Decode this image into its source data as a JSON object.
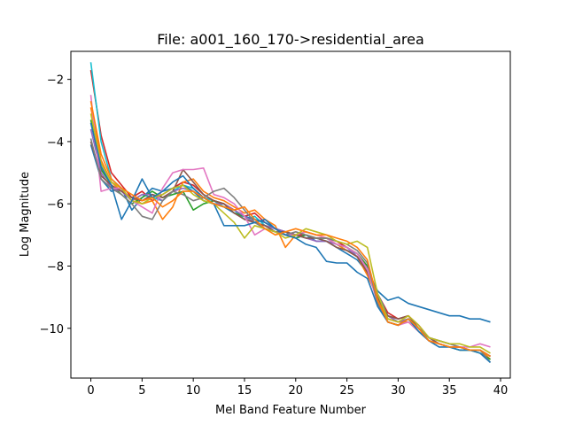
{
  "chart_data": {
    "type": "line",
    "title": "File: a001_160_170->residential_area",
    "xlabel": "Mel Band Feature Number",
    "ylabel": "Log Magnitude",
    "xlim": [
      -1.95,
      40.95
    ],
    "ylim": [
      -11.6,
      -1.1
    ],
    "xticks": [
      0,
      5,
      10,
      15,
      20,
      25,
      30,
      35,
      40
    ],
    "xtick_labels": [
      "0",
      "5",
      "10",
      "15",
      "20",
      "25",
      "30",
      "35",
      "40"
    ],
    "yticks": [
      -10,
      -8,
      -6,
      -4,
      -2
    ],
    "ytick_labels": [
      "−10",
      "−8",
      "−6",
      "−4",
      "−2"
    ],
    "grid": false,
    "legend": "none",
    "x": [
      0,
      1,
      2,
      3,
      4,
      5,
      6,
      7,
      8,
      9,
      10,
      11,
      12,
      13,
      14,
      15,
      16,
      17,
      18,
      19,
      20,
      21,
      22,
      23,
      24,
      25,
      26,
      27,
      28,
      29,
      30,
      31,
      32,
      33,
      34,
      35,
      36,
      37,
      38,
      39
    ],
    "series": [
      {
        "color": "#d62728",
        "values": [
          -1.7,
          -3.8,
          -5.0,
          -5.4,
          -5.8,
          -5.6,
          -5.9,
          -5.7,
          -5.5,
          -5.3,
          -5.4,
          -5.7,
          -5.9,
          -6.0,
          -6.2,
          -6.4,
          -6.3,
          -6.6,
          -6.8,
          -6.9,
          -7.0,
          -7.0,
          -7.1,
          -7.1,
          -7.2,
          -7.4,
          -7.6,
          -8.0,
          -8.9,
          -9.5,
          -9.7,
          -9.6,
          -9.9,
          -10.3,
          -10.5,
          -10.6,
          -10.6,
          -10.7,
          -10.7,
          -10.9
        ]
      },
      {
        "color": "#17becf",
        "values": [
          -1.45,
          -4.0,
          -5.2,
          -5.5,
          -5.9,
          -5.7,
          -5.8,
          -5.9,
          -5.6,
          -5.4,
          -5.5,
          -5.8,
          -5.9,
          -6.1,
          -6.2,
          -6.5,
          -6.4,
          -6.7,
          -6.9,
          -6.9,
          -7.0,
          -7.1,
          -7.1,
          -7.2,
          -7.3,
          -7.5,
          -7.6,
          -8.1,
          -8.9,
          -9.6,
          -9.8,
          -9.7,
          -10.0,
          -10.3,
          -10.5,
          -10.6,
          -10.6,
          -10.7,
          -10.7,
          -11.0
        ]
      },
      {
        "color": "#1f77b4",
        "values": [
          -4.1,
          -5.2,
          -5.6,
          -5.5,
          -6.2,
          -5.8,
          -5.5,
          -5.6,
          -5.5,
          -5.4,
          -5.6,
          -5.9,
          -6.0,
          -6.1,
          -6.3,
          -6.4,
          -6.5,
          -6.6,
          -6.8,
          -6.9,
          -7.1,
          -7.0,
          -7.2,
          -7.2,
          -7.4,
          -7.6,
          -7.8,
          -8.2,
          -8.8,
          -9.1,
          -9.0,
          -9.2,
          -9.3,
          -9.4,
          -9.5,
          -9.6,
          -9.6,
          -9.7,
          -9.7,
          -9.8
        ]
      },
      {
        "color": "#ff7f0e",
        "values": [
          -2.9,
          -4.6,
          -5.3,
          -5.6,
          -5.8,
          -6.0,
          -5.9,
          -6.5,
          -6.1,
          -5.3,
          -5.2,
          -5.6,
          -5.8,
          -5.9,
          -6.1,
          -6.3,
          -6.2,
          -6.5,
          -6.7,
          -7.4,
          -7.0,
          -6.9,
          -7.0,
          -7.1,
          -7.3,
          -7.5,
          -7.7,
          -8.3,
          -9.0,
          -9.7,
          -9.8,
          -9.8,
          -10.1,
          -10.4,
          -10.5,
          -10.6,
          -10.6,
          -10.7,
          -10.7,
          -11.0
        ]
      },
      {
        "color": "#2ca02c",
        "values": [
          -3.3,
          -4.9,
          -5.4,
          -5.7,
          -6.0,
          -5.8,
          -5.6,
          -5.8,
          -5.7,
          -5.6,
          -6.2,
          -6.0,
          -5.9,
          -6.0,
          -6.3,
          -6.4,
          -6.6,
          -6.7,
          -6.8,
          -7.0,
          -7.1,
          -7.0,
          -7.1,
          -7.1,
          -7.3,
          -7.4,
          -7.6,
          -8.0,
          -9.1,
          -9.8,
          -9.9,
          -9.7,
          -10.0,
          -10.4,
          -10.5,
          -10.6,
          -10.7,
          -10.7,
          -10.8,
          -11.0
        ]
      },
      {
        "color": "#9467bd",
        "values": [
          -3.6,
          -5.0,
          -5.5,
          -5.6,
          -5.9,
          -5.7,
          -5.7,
          -5.9,
          -5.6,
          -5.5,
          -5.6,
          -5.8,
          -6.0,
          -6.0,
          -6.2,
          -6.4,
          -6.6,
          -6.7,
          -6.8,
          -6.9,
          -7.0,
          -7.1,
          -7.2,
          -7.2,
          -7.3,
          -7.4,
          -7.7,
          -8.1,
          -9.0,
          -9.6,
          -9.8,
          -9.7,
          -10.0,
          -10.3,
          -10.4,
          -10.5,
          -10.6,
          -10.7,
          -10.7,
          -10.9
        ]
      },
      {
        "color": "#8c564b",
        "values": [
          -4.0,
          -5.1,
          -5.4,
          -5.6,
          -5.8,
          -5.9,
          -5.7,
          -5.8,
          -5.6,
          -4.9,
          -5.3,
          -5.7,
          -5.9,
          -6.0,
          -6.3,
          -6.5,
          -6.6,
          -6.7,
          -6.9,
          -6.9,
          -7.0,
          -7.1,
          -7.1,
          -7.2,
          -7.4,
          -7.5,
          -7.7,
          -8.2,
          -9.0,
          -9.6,
          -9.7,
          -9.6,
          -10.0,
          -10.3,
          -10.5,
          -10.6,
          -10.6,
          -10.7,
          -10.7,
          -10.9
        ]
      },
      {
        "color": "#e377c2",
        "values": [
          -2.5,
          -5.6,
          -5.5,
          -5.5,
          -5.9,
          -6.1,
          -6.3,
          -5.5,
          -5.0,
          -4.9,
          -4.9,
          -4.85,
          -5.7,
          -5.8,
          -6.0,
          -6.4,
          -7.0,
          -6.8,
          -6.9,
          -7.0,
          -7.0,
          -6.9,
          -7.0,
          -7.1,
          -7.3,
          -7.4,
          -7.6,
          -8.1,
          -9.2,
          -9.8,
          -9.9,
          -9.8,
          -10.1,
          -10.4,
          -10.5,
          -10.6,
          -10.6,
          -10.6,
          -10.5,
          -10.6
        ]
      },
      {
        "color": "#7f7f7f",
        "values": [
          -3.9,
          -5.2,
          -5.5,
          -5.7,
          -6.0,
          -6.4,
          -6.5,
          -5.9,
          -5.6,
          -5.7,
          -5.9,
          -5.8,
          -5.6,
          -5.5,
          -5.8,
          -6.2,
          -6.6,
          -6.8,
          -6.9,
          -7.0,
          -6.9,
          -7.0,
          -7.1,
          -7.1,
          -7.2,
          -7.3,
          -7.5,
          -7.9,
          -9.2,
          -9.8,
          -9.9,
          -9.7,
          -10.0,
          -10.3,
          -10.4,
          -10.5,
          -10.6,
          -10.7,
          -10.7,
          -11.1
        ]
      },
      {
        "color": "#bcbd22",
        "values": [
          -3.1,
          -4.7,
          -5.3,
          -5.5,
          -5.9,
          -6.0,
          -5.8,
          -5.7,
          -5.5,
          -5.4,
          -5.7,
          -5.9,
          -6.0,
          -6.3,
          -6.6,
          -7.1,
          -6.7,
          -6.8,
          -6.9,
          -7.1,
          -7.0,
          -6.8,
          -6.9,
          -7.0,
          -7.2,
          -7.3,
          -7.2,
          -7.4,
          -8.9,
          -9.7,
          -9.8,
          -9.6,
          -9.9,
          -10.3,
          -10.4,
          -10.5,
          -10.5,
          -10.6,
          -10.6,
          -10.8
        ]
      },
      {
        "color": "#1f77b4",
        "values": [
          -3.4,
          -4.8,
          -5.4,
          -6.5,
          -5.9,
          -5.2,
          -5.8,
          -5.6,
          -5.3,
          -5.1,
          -5.5,
          -5.8,
          -6.0,
          -6.7,
          -6.7,
          -6.7,
          -6.6,
          -6.5,
          -6.8,
          -7.0,
          -7.1,
          -7.3,
          -7.4,
          -7.85,
          -7.9,
          -7.9,
          -8.2,
          -8.4,
          -9.3,
          -9.8,
          -9.9,
          -9.7,
          -10.1,
          -10.4,
          -10.6,
          -10.6,
          -10.7,
          -10.7,
          -10.8,
          -11.1
        ]
      },
      {
        "color": "#ff7f0e",
        "values": [
          -2.7,
          -4.4,
          -5.2,
          -5.5,
          -5.7,
          -5.9,
          -5.8,
          -6.1,
          -5.9,
          -5.6,
          -5.6,
          -5.8,
          -6.0,
          -6.1,
          -6.2,
          -6.1,
          -6.5,
          -6.8,
          -7.0,
          -6.9,
          -6.8,
          -6.9,
          -7.0,
          -7.0,
          -7.1,
          -7.2,
          -7.4,
          -7.8,
          -9.1,
          -9.8,
          -9.9,
          -9.7,
          -10.0,
          -10.4,
          -10.5,
          -10.6,
          -10.6,
          -10.7,
          -10.7,
          -10.9
        ]
      }
    ]
  }
}
